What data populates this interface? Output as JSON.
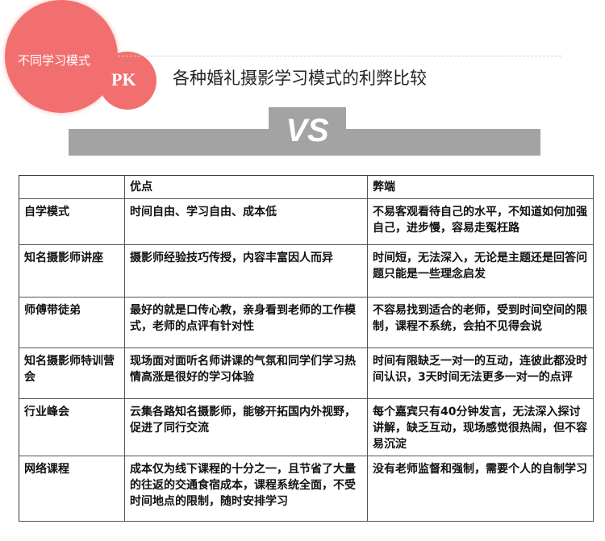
{
  "badge": {
    "text": "不同学习模式",
    "pk": "PK",
    "color": "#f26f6f"
  },
  "title": "各种婚礼摄影学习模式的利弊比较",
  "vs": "VS",
  "table": {
    "headers": [
      "",
      "优点",
      "弊端"
    ],
    "rows": [
      {
        "mode": "自学模式",
        "pros": "时间自由、学习自由、成本低",
        "cons": "不易客观看待自己的水平，不知道如何加强自己，进步慢，容易走冤枉路"
      },
      {
        "mode": "知名摄影师讲座",
        "pros": "摄影师经验技巧传授，内容丰富因人而异",
        "cons": "时间短，无法深入，无论是主题还是回答问题只能是一些理念启发"
      },
      {
        "mode": "师傅带徒弟",
        "pros": "最好的就是口传心教，亲身看到老师的工作模式，老师的点评有针对性",
        "cons": "不容易找到适合的老师，受到时间空间的限制，课程不系统，会拍不见得会说"
      },
      {
        "mode": "知名摄影师特训营会",
        "pros": "现场面对面听名师讲课的气氛和同学们学习热情高涨是很好的学习体验",
        "cons": "时间有限缺乏一对一的互动，连彼此都没时间认识，3天时间无法更多一对一的点评"
      },
      {
        "mode": "行业峰会",
        "pros": "云集各路知名摄影师，能够开拓国内外视野，促进了同行交流",
        "cons": "每个嘉宾只有40分钟发言，无法深入探讨讲解，缺乏互动，现场感觉很热闹，但不容易沉淀"
      },
      {
        "mode": "网络课程",
        "pros": "成本仅为线下课程的十分之一，且节省了大量的往返的交通食宿成本，课程系统全面，不受时间地点的限制，随时安排学习",
        "cons": "没有老师监督和强制，需要个人的自制学习"
      }
    ]
  }
}
